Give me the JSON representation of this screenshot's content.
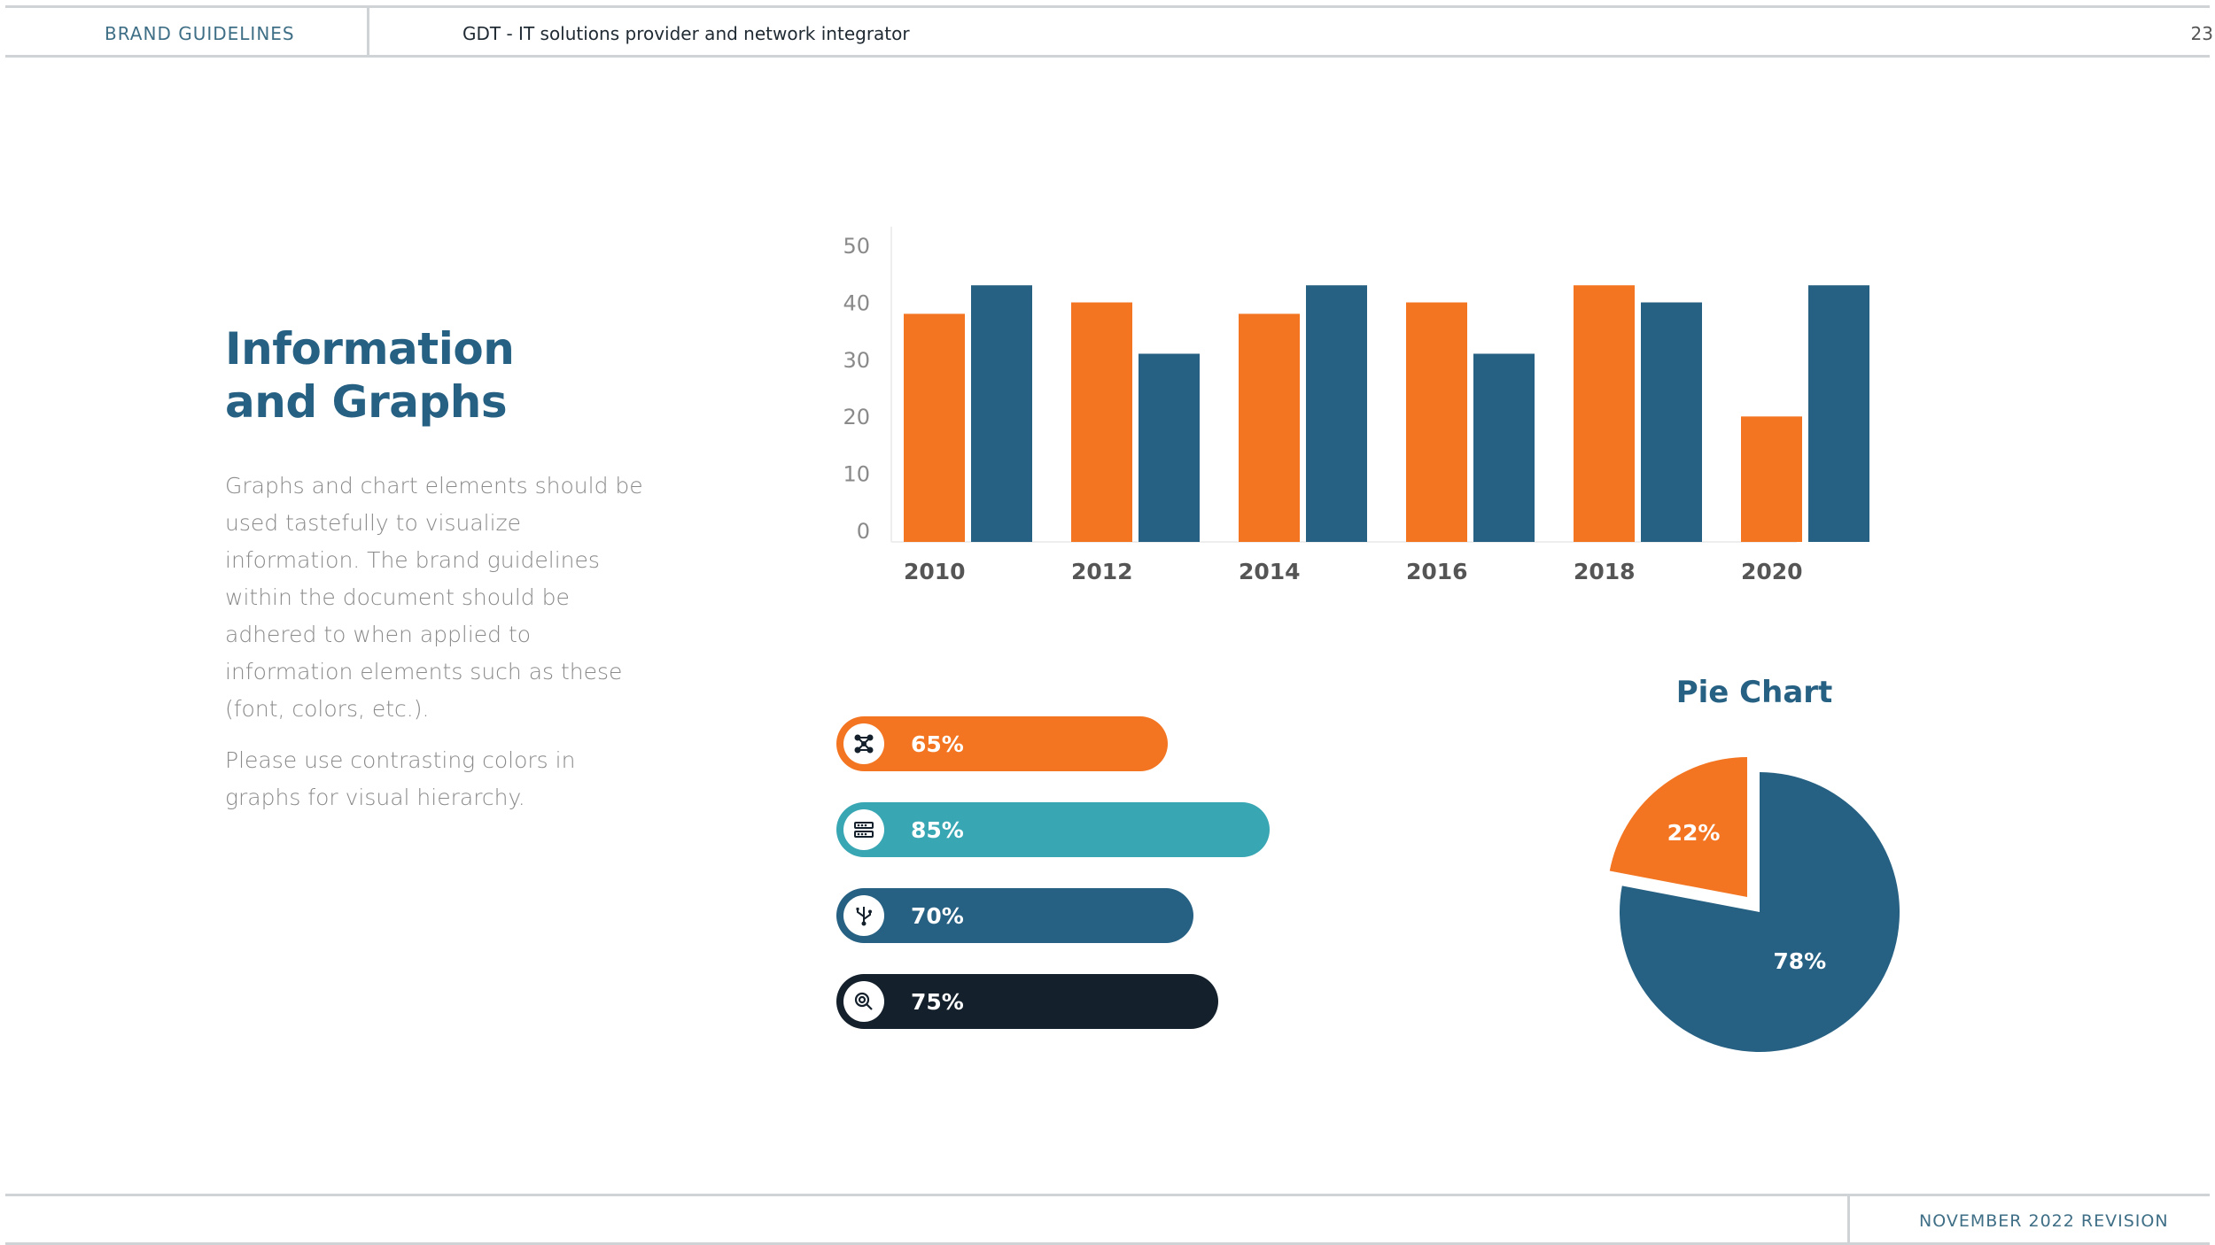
{
  "header": {
    "section": "BRAND GUIDELINES",
    "subtitle": "GDT - IT solutions provider and network integrator",
    "page_number": "23"
  },
  "footer": {
    "revision": "NOVEMBER 2022 REVISION"
  },
  "main": {
    "title_line1": "Information",
    "title_line2": "and Graphs",
    "paragraph1": "Graphs and chart elements should be used tastefully to visualize information. The brand guidelines within the document should be adhered to when applied to information elements such as these (font, colors, etc.).",
    "paragraph2": "Please use contrasting colors in graphs for visual hierarchy."
  },
  "colors": {
    "orange": "#f37521",
    "navy": "#266082",
    "teal": "#38a7b3",
    "dark": "#14202b",
    "title": "#266082"
  },
  "progress_bars": [
    {
      "label": "65%",
      "value": 0.65,
      "color": "#f37521",
      "icon": "network-nodes-icon"
    },
    {
      "label": "85%",
      "value": 0.85,
      "color": "#38a7b3",
      "icon": "server-rack-icon"
    },
    {
      "label": "70%",
      "value": 0.7,
      "color": "#266082",
      "icon": "usb-branch-icon"
    },
    {
      "label": "75%",
      "value": 0.75,
      "color": "#14202b",
      "icon": "search-magnifier-icon"
    }
  ],
  "pie": {
    "title": "Pie Chart",
    "slices": [
      {
        "label": "22%",
        "value": 22,
        "color": "#f37521"
      },
      {
        "label": "78%",
        "value": 78,
        "color": "#266082"
      }
    ]
  },
  "chart_data": {
    "type": "bar",
    "categories": [
      "2010",
      "2012",
      "2014",
      "2016",
      "2018",
      "2020"
    ],
    "series": [
      {
        "values": [
          40,
          42,
          40,
          42,
          45,
          22
        ]
      },
      {
        "values": [
          45,
          33,
          45,
          33,
          42,
          45
        ]
      }
    ],
    "yticks": [
      "0",
      "10",
      "20",
      "30",
      "40",
      "50"
    ],
    "ylim": [
      0,
      50
    ],
    "grid": false,
    "title": "",
    "xlabel": "",
    "ylabel": ""
  }
}
